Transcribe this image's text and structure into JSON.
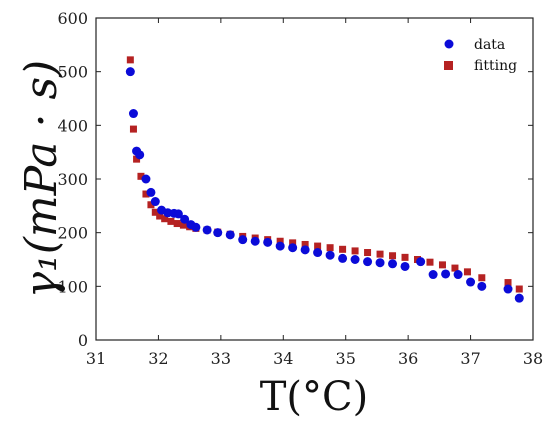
{
  "chart_data": {
    "type": "scatter",
    "title": "",
    "xlabel": "T(°C)",
    "ylabel": "γ₁(mPa · s)",
    "xlim": [
      31,
      38
    ],
    "ylim": [
      0,
      600
    ],
    "xticks": [
      "31",
      "32",
      "33",
      "34",
      "35",
      "36",
      "37",
      "38"
    ],
    "yticks": [
      "0",
      "100",
      "200",
      "300",
      "400",
      "500",
      "600"
    ],
    "grid": false,
    "legend_position": "top-right",
    "series": [
      {
        "name": "data",
        "color": "#0b0bd8",
        "marker": "circle",
        "x": [
          31.55,
          31.6,
          31.65,
          31.7,
          31.8,
          31.88,
          31.95,
          32.05,
          32.15,
          32.25,
          32.32,
          32.42,
          32.52,
          32.6,
          32.78,
          32.95,
          33.15,
          33.35,
          33.55,
          33.75,
          33.95,
          34.15,
          34.35,
          34.55,
          34.75,
          34.95,
          35.15,
          35.35,
          35.55,
          35.75,
          35.95,
          36.2,
          36.4,
          36.6,
          36.8,
          37.0,
          37.18,
          37.6,
          37.78
        ],
        "y": [
          500,
          422,
          352,
          345,
          300,
          275,
          258,
          242,
          237,
          236,
          235,
          225,
          215,
          210,
          205,
          200,
          196,
          187,
          184,
          182,
          175,
          172,
          168,
          163,
          158,
          152,
          150,
          146,
          144,
          142,
          137,
          146,
          122,
          123,
          122,
          108,
          100,
          95,
          78
        ]
      },
      {
        "name": "fitting",
        "color": "#b52222",
        "marker": "square",
        "x": [
          31.55,
          31.6,
          31.65,
          31.72,
          31.8,
          31.88,
          31.95,
          32.02,
          32.1,
          32.2,
          32.3,
          32.4,
          32.5,
          32.6,
          32.78,
          32.95,
          33.15,
          33.35,
          33.55,
          33.75,
          33.95,
          34.15,
          34.35,
          34.55,
          34.75,
          34.95,
          35.15,
          35.35,
          35.55,
          35.75,
          35.95,
          36.15,
          36.35,
          36.55,
          36.75,
          36.95,
          37.18,
          37.6,
          37.78
        ],
        "y": [
          522,
          393,
          337,
          305,
          272,
          252,
          238,
          231,
          226,
          221,
          217,
          214,
          211,
          208,
          205,
          201,
          197,
          193,
          190,
          187,
          184,
          181,
          178,
          175,
          172,
          169,
          166,
          163,
          160,
          157,
          154,
          150,
          145,
          140,
          134,
          127,
          116,
          107,
          95
        ]
      }
    ]
  }
}
